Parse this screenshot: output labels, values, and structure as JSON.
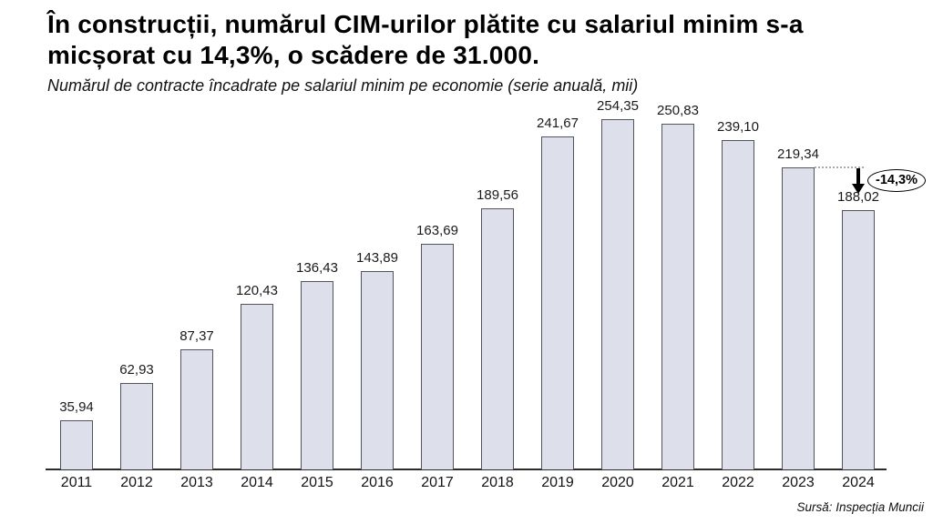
{
  "header": {
    "title_lines": [
      "În construcții, numărul CIM-urilor plătite cu salariul minim s-a",
      "micșorat cu 14,3%, o scădere de 31.000."
    ],
    "subtitle": "Numărul de contracte încadrate pe salariul minim pe economie (serie anuală, mii)"
  },
  "annotation": {
    "label": "-14,3%",
    "from_category": "2023",
    "to_category": "2024"
  },
  "source": "Sursă: Inspecția Muncii",
  "colors": {
    "bar_fill": "#dde0ea",
    "bar_border": "#51545c",
    "axis": "#2b2b2b",
    "dotted_guide": "#a8a8a8",
    "annotation": "#000000"
  },
  "chart_data": {
    "type": "bar",
    "title": "Numărul de contracte încadrate pe salariul minim pe economie (serie anuală, mii)",
    "xlabel": "",
    "ylabel": "",
    "ylim": [
      0,
      270
    ],
    "grid": false,
    "legend": null,
    "categories": [
      "2011",
      "2012",
      "2013",
      "2014",
      "2015",
      "2016",
      "2017",
      "2018",
      "2019",
      "2020",
      "2021",
      "2022",
      "2023",
      "2024"
    ],
    "values": [
      35.94,
      62.93,
      87.37,
      120.43,
      136.43,
      143.89,
      163.69,
      189.56,
      241.67,
      254.35,
      250.83,
      239.1,
      219.34,
      188.02
    ],
    "value_labels": [
      "35,94",
      "62,93",
      "87,37",
      "120,43",
      "136,43",
      "143,89",
      "163,69",
      "189,56",
      "241,67",
      "254,35",
      "250,83",
      "239,10",
      "219,34",
      "188,02"
    ],
    "annotations": [
      {
        "text": "-14,3%",
        "from_category": "2023",
        "to_category": "2024",
        "shape": "down-arrow-with-ellipse"
      }
    ]
  }
}
